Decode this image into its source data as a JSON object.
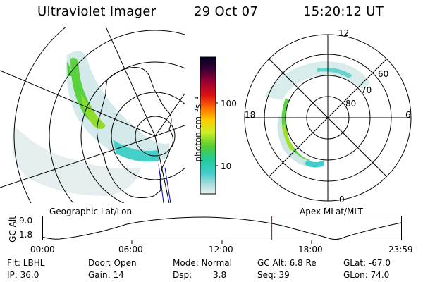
{
  "header": {
    "title": "Ultraviolet Imager",
    "date": "29 Oct 07",
    "time": "15:20:12 UT"
  },
  "colorbar": {
    "unit": "photon cm⁻²s⁻¹",
    "tick_labels": [
      "100",
      "10"
    ]
  },
  "geo_panel": {
    "label": "Geographic Lat/Lon"
  },
  "polar_panel": {
    "label": "Apex MLat/MLT",
    "mlt_labels": [
      "12",
      "18",
      "6",
      "0"
    ],
    "mlat_labels": [
      "60",
      "70",
      "80"
    ]
  },
  "altitude_plot": {
    "axis_label": "GC Alt",
    "y_ticks": [
      "9.0",
      "1.8"
    ],
    "x_ticks": [
      "00:00",
      "06:00",
      "12:00",
      "18:00",
      "23:59"
    ],
    "current_time_marker_hours": 15.34
  },
  "metadata": {
    "filter": "Flt: LBHL",
    "ip": "IP: 36.0",
    "door": "Door: Open",
    "gain": "Gain: 14",
    "mode": "Mode: Normal",
    "dsp": "Dsp:",
    "dsp_value": "3.8",
    "gc_alt": "GC Alt: 6.8 Re",
    "seq": "Seq: 39",
    "glat": "GLat: -67.0",
    "glon": "GLon: 74.0"
  },
  "colors": {
    "marker": "#cc0000",
    "boundary": "#0000cc"
  }
}
